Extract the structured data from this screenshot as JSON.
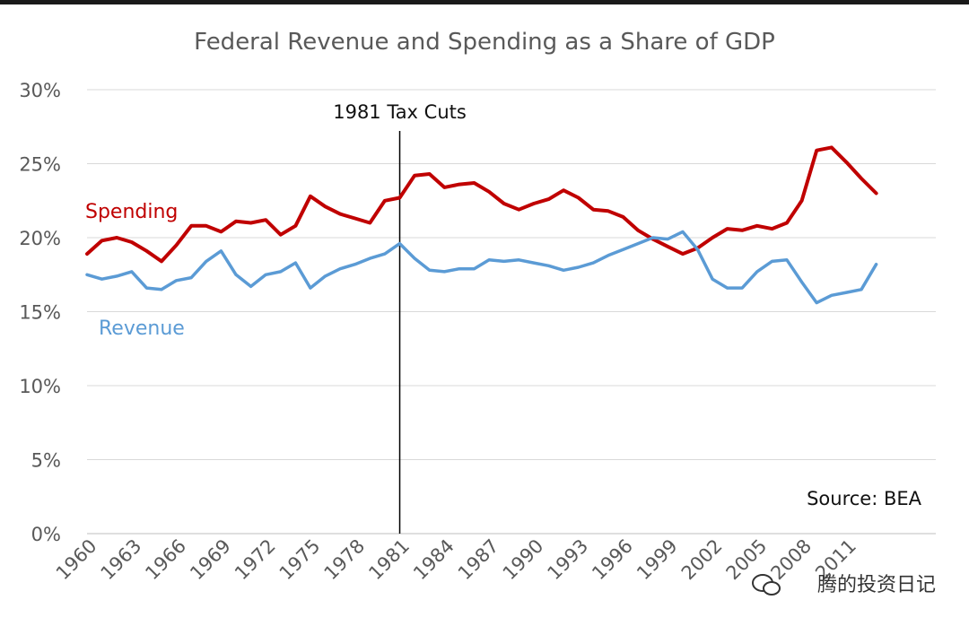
{
  "chart_data": {
    "type": "line",
    "title": "Federal Revenue and Spending as a Share of GDP",
    "xlabel": "",
    "ylabel": "",
    "ylim": [
      0,
      30
    ],
    "yticks": [
      "0%",
      "5%",
      "10%",
      "15%",
      "20%",
      "25%",
      "30%"
    ],
    "xlim": [
      1960,
      2017
    ],
    "xticks": [
      "1960",
      "1963",
      "1966",
      "1969",
      "1972",
      "1975",
      "1978",
      "1981",
      "1984",
      "1987",
      "1990",
      "1993",
      "1996",
      "1999",
      "2002",
      "2005",
      "2008",
      "2011"
    ],
    "grid": true,
    "legend": "none",
    "x": [
      1960,
      1961,
      1962,
      1963,
      1964,
      1965,
      1966,
      1967,
      1968,
      1969,
      1970,
      1971,
      1972,
      1973,
      1974,
      1975,
      1976,
      1977,
      1978,
      1979,
      1980,
      1981,
      1982,
      1983,
      1984,
      1985,
      1986,
      1987,
      1988,
      1989,
      1990,
      1991,
      1992,
      1993,
      1994,
      1995,
      1996,
      1997,
      1998,
      1999,
      2000,
      2001,
      2002,
      2003,
      2004,
      2005,
      2006,
      2007,
      2008,
      2009,
      2010,
      2011,
      2012,
      2013,
      2014
    ],
    "series": [
      {
        "name": "Spending",
        "color": "#c00000",
        "values": [
          18.9,
          19.8,
          20.0,
          19.7,
          19.1,
          18.4,
          19.5,
          20.8,
          20.8,
          20.4,
          21.1,
          21.0,
          21.2,
          20.2,
          20.8,
          22.8,
          22.1,
          21.6,
          21.3,
          21.0,
          22.5,
          22.7,
          24.2,
          24.3,
          23.4,
          23.6,
          23.7,
          23.1,
          22.3,
          21.9,
          22.3,
          22.6,
          23.2,
          22.7,
          21.9,
          21.8,
          21.4,
          20.5,
          19.9,
          19.4,
          18.9,
          19.3,
          20.0,
          20.6,
          20.5,
          20.8,
          20.6,
          21.0,
          22.5,
          25.9,
          26.1,
          25.1,
          24.0,
          23.0,
          null
        ]
      },
      {
        "name": "Revenue",
        "color": "#5b9bd5",
        "values": [
          17.5,
          17.2,
          17.4,
          17.7,
          16.6,
          16.5,
          17.1,
          17.3,
          18.4,
          19.1,
          17.5,
          16.7,
          17.5,
          17.7,
          18.3,
          16.6,
          17.4,
          17.9,
          18.2,
          18.6,
          18.9,
          19.6,
          18.6,
          17.8,
          17.7,
          17.9,
          17.9,
          18.5,
          18.4,
          18.5,
          18.3,
          18.1,
          17.8,
          18.0,
          18.3,
          18.8,
          19.2,
          19.6,
          20.0,
          19.9,
          20.4,
          19.2,
          17.2,
          16.6,
          16.6,
          17.7,
          18.4,
          18.5,
          17.0,
          15.6,
          16.1,
          16.3,
          16.5,
          18.2,
          null
        ]
      }
    ],
    "annotations": {
      "vline_year": 1981,
      "vline_label": "1981 Tax Cuts",
      "spending_label": "Spending",
      "revenue_label": "Revenue",
      "source": "Source: BEA"
    }
  },
  "watermark": "腾的投资日记",
  "colors": {
    "spending": "#c00000",
    "revenue": "#5b9bd5",
    "vline": "#000000",
    "grid": "#d9d9d9"
  }
}
